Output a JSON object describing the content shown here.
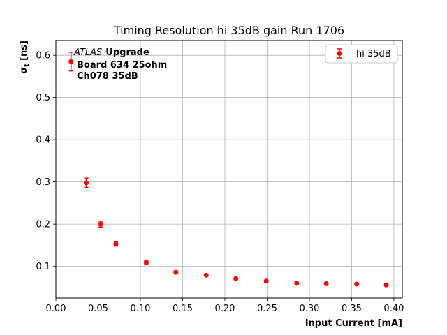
{
  "chart_data": {
    "type": "scatter",
    "title": "Timing Resolution hi 35dB gain Run 1706",
    "xlabel": "Input Current [mA]",
    "ylabel_main": "σ",
    "ylabel_sub": "t",
    "ylabel_unit": "[ns]",
    "xlim": [
      0.0,
      0.41
    ],
    "ylim": [
      0.025,
      0.635
    ],
    "xticks": [
      0.0,
      0.05,
      0.1,
      0.15,
      0.2,
      0.25,
      0.3,
      0.35,
      0.4
    ],
    "xtick_labels": [
      "0.00",
      "0.05",
      "0.10",
      "0.15",
      "0.20",
      "0.25",
      "0.30",
      "0.35",
      "0.40"
    ],
    "yticks": [
      0.1,
      0.2,
      0.3,
      0.4,
      0.5,
      0.6
    ],
    "ytick_labels": [
      "0.1",
      "0.2",
      "0.3",
      "0.4",
      "0.5",
      "0.6"
    ],
    "grid": true,
    "legend_position": "top-right",
    "series": [
      {
        "name": "hi 35dB",
        "color": "#ff0000",
        "marker": "circle",
        "points": [
          {
            "x": 0.018,
            "y": 0.585,
            "err": 0.022
          },
          {
            "x": 0.036,
            "y": 0.298,
            "err": 0.011
          },
          {
            "x": 0.053,
            "y": 0.2,
            "err": 0.007
          },
          {
            "x": 0.071,
            "y": 0.153,
            "err": 0.005
          },
          {
            "x": 0.107,
            "y": 0.109,
            "err": 0.004
          },
          {
            "x": 0.142,
            "y": 0.086,
            "err": 0.003
          },
          {
            "x": 0.178,
            "y": 0.079,
            "err": 0.002
          },
          {
            "x": 0.213,
            "y": 0.071,
            "err": 0.002
          },
          {
            "x": 0.249,
            "y": 0.065,
            "err": 0.002
          },
          {
            "x": 0.285,
            "y": 0.06,
            "err": 0.002
          },
          {
            "x": 0.32,
            "y": 0.059,
            "err": 0.002
          },
          {
            "x": 0.356,
            "y": 0.058,
            "err": 0.002
          },
          {
            "x": 0.391,
            "y": 0.056,
            "err": 0.002
          }
        ]
      }
    ],
    "annotation": {
      "italic": "ATLAS",
      "bold": "Upgrade",
      "line2": "Board 634 25ohm",
      "line3": "Ch078 35dB"
    }
  }
}
